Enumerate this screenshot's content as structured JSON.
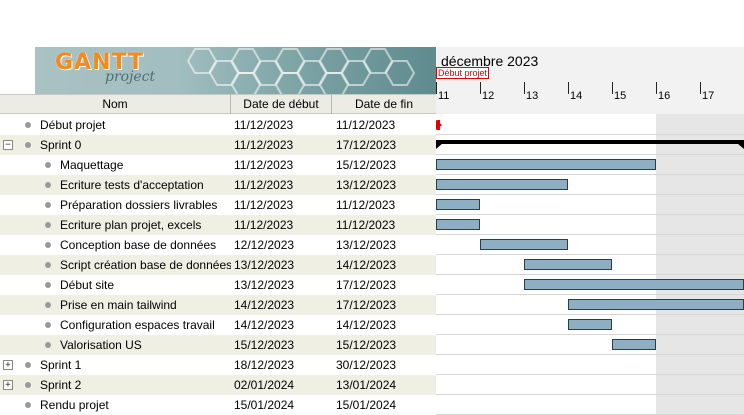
{
  "header": {
    "logo_main": "GANTT",
    "logo_sub": "project",
    "columns": [
      "Nom",
      "Date de début",
      "Date de fin"
    ]
  },
  "gantt": {
    "month_label": "décembre 2023",
    "milestone_label": "Début projet",
    "days": [
      "11",
      "12",
      "13",
      "14",
      "15",
      "16",
      "17"
    ]
  },
  "tasks": [
    {
      "name": "Début projet",
      "start": "11/12/2023",
      "end": "11/12/2023",
      "level": 0,
      "type": "milestone"
    },
    {
      "name": "Sprint 0",
      "start": "11/12/2023",
      "end": "17/12/2023",
      "level": 0,
      "type": "summary",
      "expander": "−"
    },
    {
      "name": "Maquettage",
      "start": "11/12/2023",
      "end": "15/12/2023",
      "level": 1,
      "type": "task"
    },
    {
      "name": "Ecriture tests d'acceptation",
      "start": "11/12/2023",
      "end": "13/12/2023",
      "level": 1,
      "type": "task"
    },
    {
      "name": "Préparation dossiers livrables",
      "start": "11/12/2023",
      "end": "11/12/2023",
      "level": 1,
      "type": "task"
    },
    {
      "name": "Ecriture plan projet, excels",
      "start": "11/12/2023",
      "end": "11/12/2023",
      "level": 1,
      "type": "task"
    },
    {
      "name": "Conception base de données",
      "start": "12/12/2023",
      "end": "13/12/2023",
      "level": 1,
      "type": "task"
    },
    {
      "name": "Script création base de données",
      "start": "13/12/2023",
      "end": "14/12/2023",
      "level": 1,
      "type": "task"
    },
    {
      "name": "Début site",
      "start": "13/12/2023",
      "end": "17/12/2023",
      "level": 1,
      "type": "task"
    },
    {
      "name": "Prise en main tailwind",
      "start": "14/12/2023",
      "end": "17/12/2023",
      "level": 1,
      "type": "task"
    },
    {
      "name": "Configuration espaces travail",
      "start": "14/12/2023",
      "end": "14/12/2023",
      "level": 1,
      "type": "task"
    },
    {
      "name": "Valorisation US",
      "start": "15/12/2023",
      "end": "15/12/2023",
      "level": 1,
      "type": "task"
    },
    {
      "name": "Sprint 1",
      "start": "18/12/2023",
      "end": "30/12/2023",
      "level": 0,
      "type": "collapsed",
      "expander": "+"
    },
    {
      "name": "Sprint 2",
      "start": "02/01/2024",
      "end": "13/01/2024",
      "level": 0,
      "type": "collapsed",
      "expander": "+"
    },
    {
      "name": "Rendu projet",
      "start": "15/01/2024",
      "end": "15/01/2024",
      "level": 0,
      "type": "task"
    }
  ],
  "colors": {
    "bar_fill": "#8daec3",
    "row_alt": "#efefe3",
    "milestone": "#e00000",
    "weekend": "#e6e6e6"
  }
}
